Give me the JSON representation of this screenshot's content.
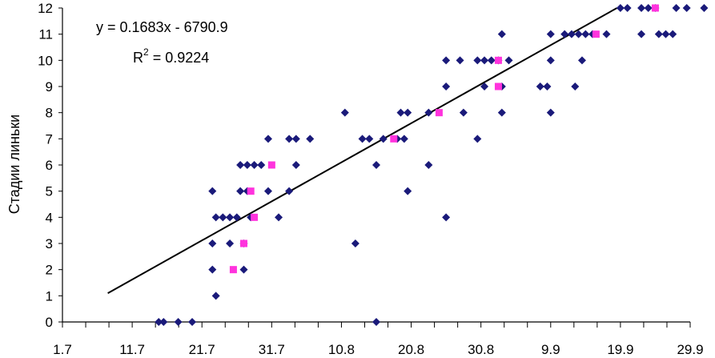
{
  "chart_data": {
    "type": "scatter",
    "title": "",
    "xlabel": "",
    "ylabel": "Стадии линьки",
    "ylim": [
      0,
      12
    ],
    "y_ticks": [
      "0",
      "1",
      "2",
      "3",
      "4",
      "5",
      "6",
      "7",
      "8",
      "9",
      "10",
      "11",
      "12"
    ],
    "x_tick_labels": [
      "1.7",
      "11.7",
      "21.7",
      "31.7",
      "10.8",
      "20.8",
      "30.8",
      "9.9",
      "19.9",
      "29.9"
    ],
    "x_major_index_range": [
      0,
      9
    ],
    "x_minor_per_major": 3,
    "equation": "y = 0.1683x - 6790.9",
    "r2_prefix": "R",
    "r2_sup": "2",
    "r2_value": " = 0.9224",
    "colors": {
      "series_points": "#1a1a7a",
      "mean_points": "#ff33dd",
      "trendline": "#000000"
    },
    "series": [
      {
        "marker": "diamond",
        "points": [
          [
            1.38,
            0
          ],
          [
            1.45,
            0
          ],
          [
            1.66,
            0
          ],
          [
            1.86,
            0
          ],
          [
            4.5,
            0
          ],
          [
            2.2,
            1
          ],
          [
            2.15,
            2
          ],
          [
            2.6,
            2
          ],
          [
            2.15,
            3
          ],
          [
            2.4,
            3
          ],
          [
            2.6,
            3
          ],
          [
            4.2,
            3
          ],
          [
            2.2,
            4
          ],
          [
            2.3,
            4
          ],
          [
            2.4,
            4
          ],
          [
            2.5,
            4
          ],
          [
            2.7,
            4
          ],
          [
            3.1,
            4
          ],
          [
            5.5,
            4
          ],
          [
            2.15,
            5
          ],
          [
            2.55,
            5
          ],
          [
            2.65,
            5
          ],
          [
            2.95,
            5
          ],
          [
            3.25,
            5
          ],
          [
            4.95,
            5
          ],
          [
            2.55,
            6
          ],
          [
            2.65,
            6
          ],
          [
            2.75,
            6
          ],
          [
            2.85,
            6
          ],
          [
            3.35,
            6
          ],
          [
            4.5,
            6
          ],
          [
            5.25,
            6
          ],
          [
            2.95,
            7
          ],
          [
            3.25,
            7
          ],
          [
            3.35,
            7
          ],
          [
            3.55,
            7
          ],
          [
            4.3,
            7
          ],
          [
            4.4,
            7
          ],
          [
            4.6,
            7
          ],
          [
            4.8,
            7
          ],
          [
            4.9,
            7
          ],
          [
            5.95,
            7
          ],
          [
            4.05,
            8
          ],
          [
            4.85,
            8
          ],
          [
            4.95,
            8
          ],
          [
            5.25,
            8
          ],
          [
            5.75,
            8
          ],
          [
            6.3,
            8
          ],
          [
            7.0,
            8
          ],
          [
            5.5,
            9
          ],
          [
            6.05,
            9
          ],
          [
            6.3,
            9
          ],
          [
            6.85,
            9
          ],
          [
            6.95,
            9
          ],
          [
            7.35,
            9
          ],
          [
            5.5,
            10
          ],
          [
            5.7,
            10
          ],
          [
            5.95,
            10
          ],
          [
            6.05,
            10
          ],
          [
            6.15,
            10
          ],
          [
            6.25,
            10
          ],
          [
            6.4,
            10
          ],
          [
            7.0,
            10
          ],
          [
            7.45,
            10
          ],
          [
            6.3,
            11
          ],
          [
            7.0,
            11
          ],
          [
            7.2,
            11
          ],
          [
            7.3,
            11
          ],
          [
            7.4,
            11
          ],
          [
            7.5,
            11
          ],
          [
            7.6,
            11
          ],
          [
            7.8,
            11
          ],
          [
            8.3,
            11
          ],
          [
            8.55,
            11
          ],
          [
            8.65,
            11
          ],
          [
            8.75,
            11
          ],
          [
            8.0,
            12
          ],
          [
            8.1,
            12
          ],
          [
            8.3,
            12
          ],
          [
            8.4,
            12
          ],
          [
            8.5,
            12
          ],
          [
            8.8,
            12
          ],
          [
            8.95,
            12
          ],
          [
            9.2,
            12
          ]
        ]
      },
      {
        "marker": "square",
        "points": [
          [
            2.45,
            2
          ],
          [
            2.6,
            3
          ],
          [
            2.75,
            4
          ],
          [
            2.7,
            5
          ],
          [
            3.0,
            6
          ],
          [
            4.75,
            7
          ],
          [
            5.4,
            8
          ],
          [
            6.25,
            9
          ],
          [
            6.25,
            10
          ],
          [
            7.65,
            11
          ],
          [
            8.5,
            12
          ]
        ]
      }
    ],
    "trendline": {
      "from": [
        0.65,
        1.1
      ],
      "to": [
        7.95,
        12
      ]
    }
  }
}
